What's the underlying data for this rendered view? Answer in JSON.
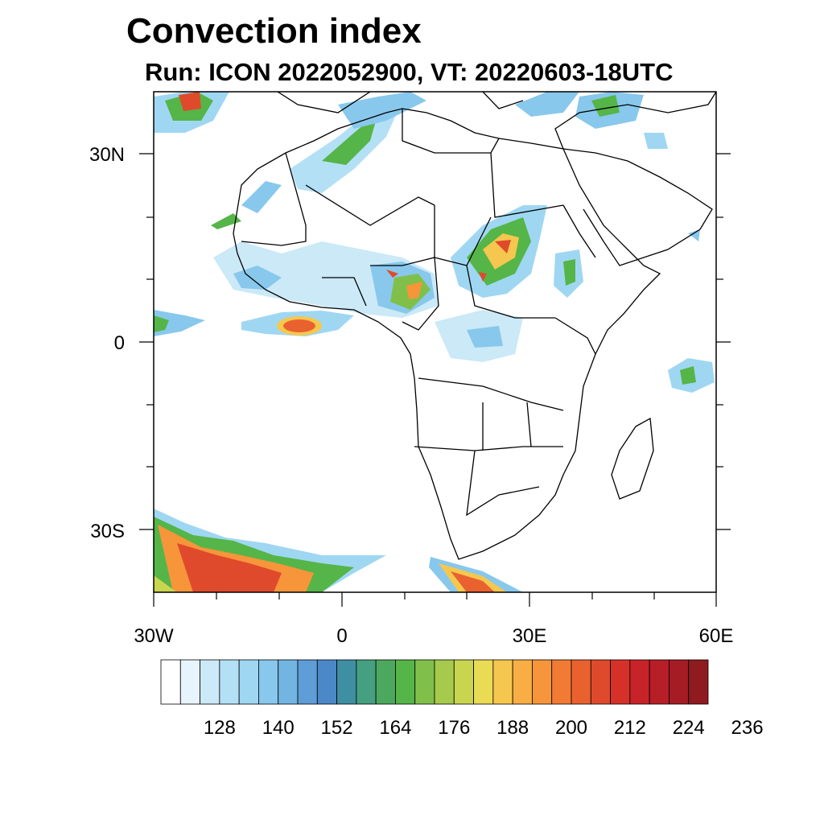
{
  "title": "Convection index",
  "subtitle": "Run: ICON 2022052900,  VT: 20220603-18UTC",
  "axes": {
    "y_labels": [
      "30N",
      "0",
      "30S"
    ],
    "x_labels": [
      "30W",
      "0",
      "30E",
      "60E"
    ]
  },
  "colorbar": {
    "colors": [
      "#ffffff",
      "#e7f4fb",
      "#cbe9f7",
      "#b4e0f6",
      "#9fd7f2",
      "#88c8ec",
      "#72b4e2",
      "#5e9dd5",
      "#4b88c8",
      "#3f8fa3",
      "#44a081",
      "#4ca85e",
      "#55b548",
      "#80c04a",
      "#a6ca4b",
      "#cad54f",
      "#eadb55",
      "#f5c74e",
      "#f8ae45",
      "#f7953a",
      "#f17b34",
      "#ea6130",
      "#e04a2c",
      "#d63129",
      "#c82329",
      "#b71e27",
      "#a51c24",
      "#8f1a1f"
    ],
    "tick_labels": [
      "128",
      "140",
      "152",
      "164",
      "176",
      "188",
      "200",
      "212",
      "224",
      "236"
    ]
  },
  "icons": [
    "africa-coastline-map"
  ]
}
